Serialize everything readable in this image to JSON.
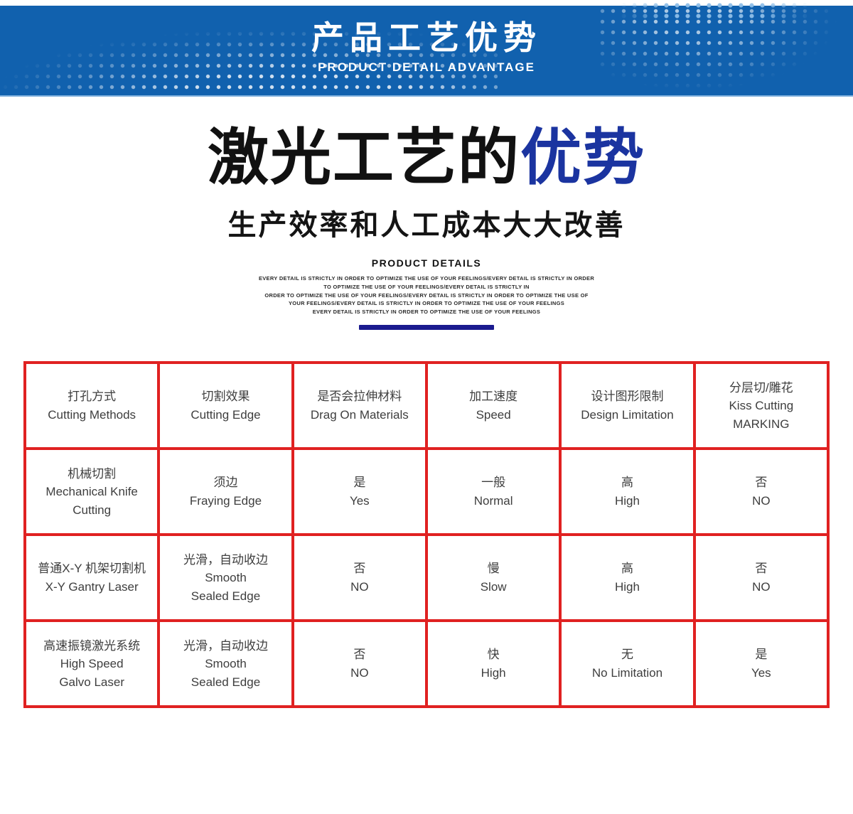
{
  "banner": {
    "title": "产品工艺优势",
    "subtitle": "PRODUCT DETAIL ADVANTAGE"
  },
  "hero": {
    "title_black": "激光工艺的",
    "title_blue": "优势",
    "subtitle": "生产效率和人工成本大大改善",
    "kicker": "PRODUCT DETAILS",
    "fine_print": "EVERY DETAIL IS STRICTLY IN ORDER TO OPTIMIZE THE USE OF YOUR FEELINGS/EVERY DETAIL IS STRICTLY IN ORDER\nTO OPTIMIZE THE USE OF YOUR FEELINGS/EVERY DETAIL IS STRICTLY IN\nORDER TO OPTIMIZE THE USE OF YOUR FEELINGS/EVERY DETAIL IS STRICTLY IN ORDER TO OPTIMIZE THE USE OF\nYOUR FEELINGS/EVERY DETAIL IS STRICTLY IN ORDER TO OPTIMIZE THE USE OF YOUR FEELINGS\nEVERY DETAIL IS STRICTLY IN ORDER TO OPTIMIZE THE USE OF YOUR FEELINGS"
  },
  "colors": {
    "banner-blue": "#1161ae",
    "heading-blue": "#1b34a0",
    "divider-navy": "#1b1b8f",
    "table-red": "#e02121"
  },
  "table": {
    "headers": [
      "打孔方式\nCutting Methods",
      "切割效果\nCutting Edge",
      "是否会拉伸材料\nDrag On Materials",
      "加工速度\nSpeed",
      "设计图形限制\nDesign Limitation",
      "分层切/雕花\nKiss Cutting\nMARKING"
    ],
    "rows": [
      [
        "机械切割\nMechanical Knife\nCutting",
        "须边\nFraying Edge",
        "是\nYes",
        "一般\nNormal",
        "高\nHigh",
        "否\nNO"
      ],
      [
        "普通X-Y 机架切割机\nX-Y Gantry Laser",
        "光滑，自动收边\nSmooth\nSealed Edge",
        "否\nNO",
        "慢\nSlow",
        "高\nHigh",
        "否\nNO"
      ],
      [
        "高速振镜激光系统\nHigh Speed\nGalvo Laser",
        "光滑，自动收边\nSmooth\nSealed Edge",
        "否\nNO",
        "快\nHigh",
        "无\nNo Limitation",
        "是\nYes"
      ]
    ]
  }
}
